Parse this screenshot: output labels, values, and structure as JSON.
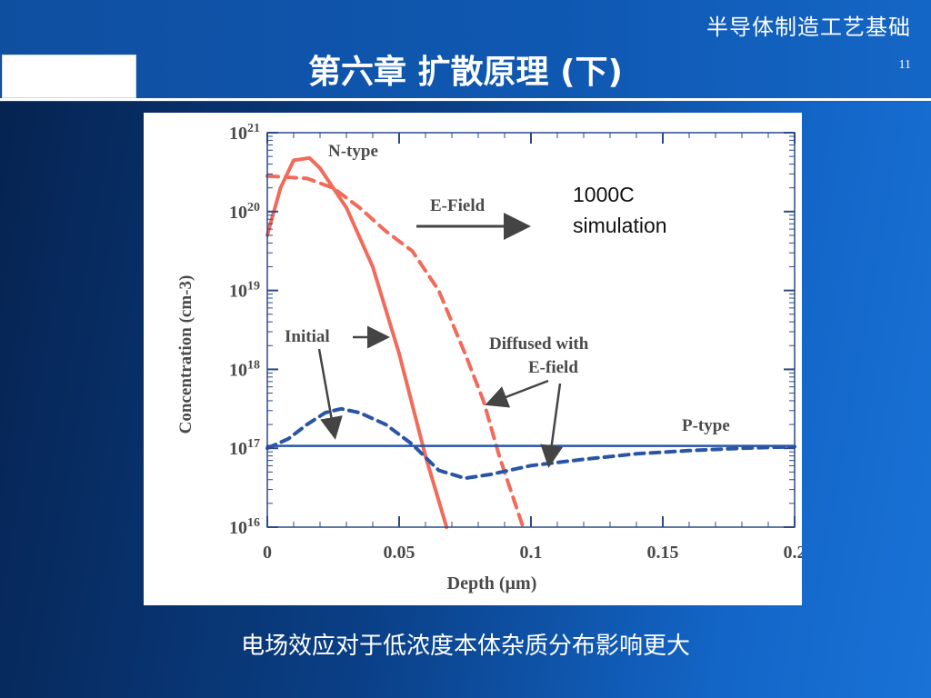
{
  "slide": {
    "course_title": "半导体制造工艺基础",
    "title": "第六章 扩散原理 (下)",
    "page_number": "11",
    "caption": "电场效应对于低浓度本体杂质分布影响更大"
  },
  "colors": {
    "red": "#f26a5a",
    "blue": "#2a55a6",
    "axis": "#2a4a8a"
  },
  "chart_data": {
    "type": "line",
    "xlabel": "Depth (µm)",
    "ylabel": "Concentration (cm-3)",
    "xlim": [
      0,
      0.2
    ],
    "ylim_log10": [
      16,
      21
    ],
    "y_scale": "log",
    "x_ticks": [
      "0",
      "0.05",
      "0.1",
      "0.15",
      "0.2"
    ],
    "x_tick_values": [
      0,
      0.05,
      0.1,
      0.15,
      0.2
    ],
    "y_ticks": [
      "16",
      "17",
      "18",
      "19",
      "20",
      "21"
    ],
    "y_tick_values": [
      16,
      17,
      18,
      19,
      20,
      21
    ],
    "y_tick_base": "10",
    "series": [
      {
        "name": "Initial",
        "points": [
          [
            0,
            19.7
          ],
          [
            0.005,
            20.3
          ],
          [
            0.01,
            20.65
          ],
          [
            0.016,
            20.68
          ],
          [
            0.02,
            20.55
          ],
          [
            0.03,
            20.05
          ],
          [
            0.04,
            19.3
          ],
          [
            0.05,
            18.2
          ],
          [
            0.06,
            16.9
          ],
          [
            0.068,
            16.0
          ]
        ]
      },
      {
        "name": "Diffused with E-field",
        "points": [
          [
            0,
            20.45
          ],
          [
            0.015,
            20.42
          ],
          [
            0.025,
            20.3
          ],
          [
            0.035,
            20.05
          ],
          [
            0.045,
            19.75
          ],
          [
            0.055,
            19.5
          ],
          [
            0.065,
            19.0
          ],
          [
            0.075,
            18.2
          ],
          [
            0.082,
            17.6
          ],
          [
            0.088,
            16.9
          ],
          [
            0.093,
            16.4
          ],
          [
            0.097,
            16.0
          ]
        ]
      },
      {
        "name": "P-type (diffused)",
        "points": [
          [
            0,
            17.0
          ],
          [
            0.008,
            17.12
          ],
          [
            0.015,
            17.3
          ],
          [
            0.022,
            17.45
          ],
          [
            0.028,
            17.5
          ],
          [
            0.035,
            17.45
          ],
          [
            0.045,
            17.3
          ],
          [
            0.055,
            17.05
          ],
          [
            0.065,
            16.72
          ],
          [
            0.075,
            16.62
          ],
          [
            0.085,
            16.67
          ],
          [
            0.1,
            16.78
          ],
          [
            0.12,
            16.86
          ],
          [
            0.14,
            16.93
          ],
          [
            0.16,
            16.97
          ],
          [
            0.18,
            17.0
          ],
          [
            0.2,
            17.02
          ]
        ]
      },
      {
        "name": "P-type (initial)",
        "points": [
          [
            0,
            17.03
          ],
          [
            0.2,
            17.03
          ]
        ]
      }
    ],
    "annotations": {
      "n_type": "N-type",
      "e_field": "E-Field",
      "sim_line1": "1000C",
      "sim_line2": "simulation",
      "initial": "Initial",
      "diffused_line1": "Diffused with",
      "diffused_line2": "E-field",
      "p_type": "P-type"
    }
  }
}
